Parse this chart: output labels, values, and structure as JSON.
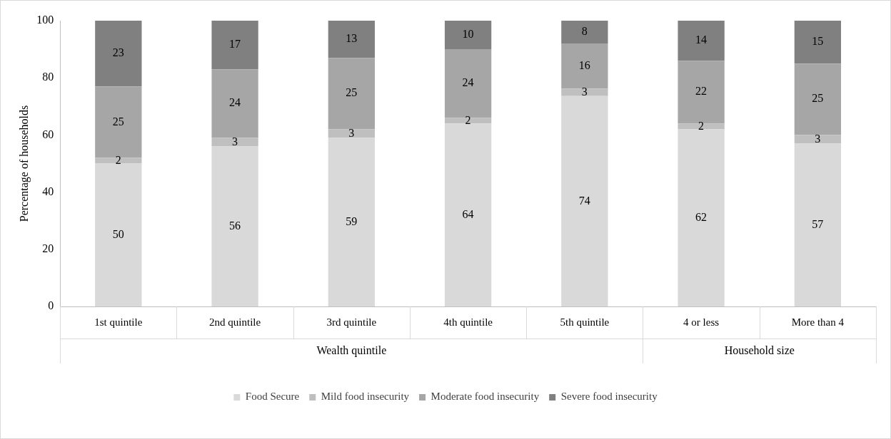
{
  "chart_data": {
    "type": "bar",
    "stacked": true,
    "ylabel": "Percentage of households",
    "categories": [
      "1st quintile",
      "2nd quintile",
      "3rd quintile",
      "4th quintile",
      "5th quintile",
      "4 or less",
      "More than 4"
    ],
    "series": [
      {
        "name": "Food Secure",
        "color": "#d9d9d9",
        "values": [
          50,
          56,
          59,
          64,
          73.6,
          62,
          57
        ],
        "value_labels": [
          "50",
          "56",
          "59",
          "64",
          "74",
          "62",
          "57"
        ]
      },
      {
        "name": "Mild food insecurity",
        "color": "#bfbfbf",
        "values": [
          2,
          3,
          3,
          2,
          2.6,
          2,
          3
        ],
        "value_labels": [
          "2",
          "3",
          "3",
          "2",
          "3",
          "2",
          "3"
        ]
      },
      {
        "name": "Moderate food insecurity",
        "color": "#a6a6a6",
        "values": [
          25,
          24,
          25,
          24,
          15.8,
          22,
          25
        ],
        "value_labels": [
          "25",
          "24",
          "25",
          "24",
          "16",
          "22",
          "25"
        ]
      },
      {
        "name": "Severe food insecurity",
        "color": "#808080",
        "values": [
          23,
          17,
          13,
          10,
          8,
          14,
          15
        ],
        "value_labels": [
          "23",
          "17",
          "13",
          "10",
          "8",
          "14",
          "15"
        ]
      }
    ],
    "annotations": [
      "Wealth quintile",
      "Household size"
    ],
    "ylim": [
      0,
      100
    ],
    "yticks": [
      0,
      20,
      40,
      60,
      80,
      100
    ],
    "grid": false,
    "legend": "bottom"
  }
}
